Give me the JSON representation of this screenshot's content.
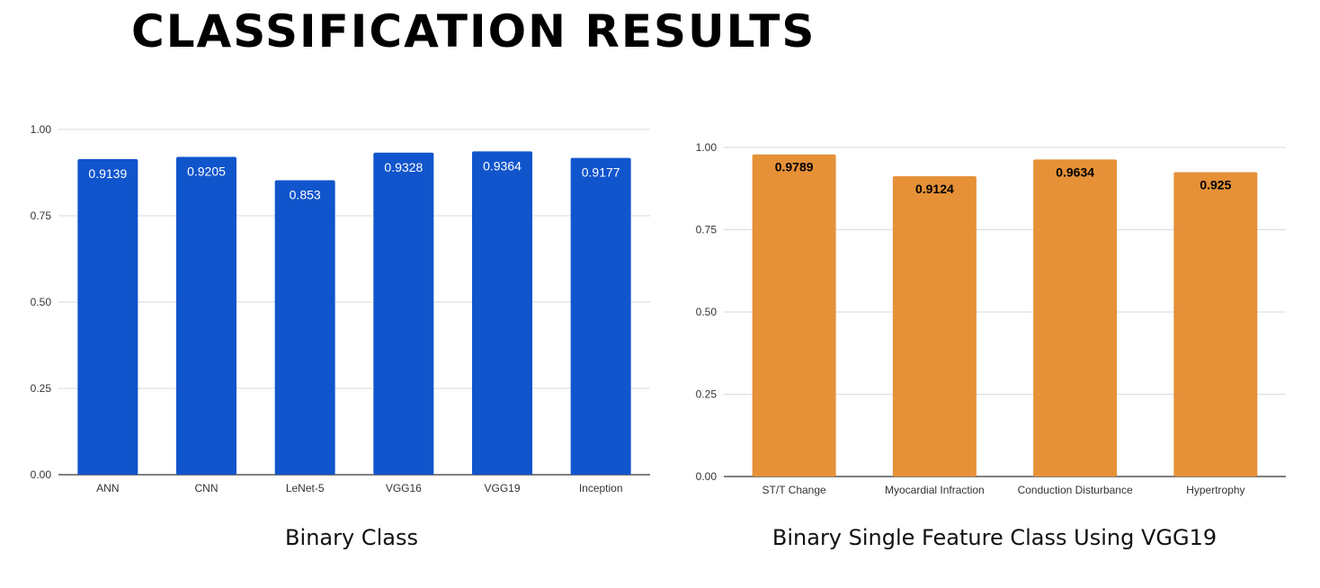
{
  "slide": {
    "title": "CLASSIFICATION RESULTS"
  },
  "chart_data": [
    {
      "type": "bar",
      "caption": "Binary Class",
      "categories": [
        "ANN",
        "CNN",
        "LeNet-5",
        "VGG16",
        "VGG19",
        "Inception"
      ],
      "values": [
        0.9139,
        0.9205,
        0.853,
        0.9328,
        0.9364,
        0.9177
      ],
      "value_labels": [
        "0.9139",
        "0.9205",
        "0.853",
        "0.9328",
        "0.9364",
        "0.9177"
      ],
      "yticks": [
        "0.00",
        "0.25",
        "0.50",
        "0.75",
        "1.00"
      ],
      "ylim": [
        0,
        1
      ],
      "grid": true,
      "bar_color": "#1155cc",
      "label_color": "#ffffff",
      "label_bold": false
    },
    {
      "type": "bar",
      "caption": "Binary Single Feature Class Using VGG19",
      "categories": [
        "ST/T Change",
        "Myocardial Infraction",
        "Conduction Disturbance",
        "Hypertrophy"
      ],
      "values": [
        0.9789,
        0.9124,
        0.9634,
        0.925
      ],
      "value_labels": [
        "0.9789",
        "0.9124",
        "0.9634",
        "0.925"
      ],
      "yticks": [
        "0.00",
        "0.25",
        "0.50",
        "0.75",
        "1.00"
      ],
      "ylim": [
        0,
        1
      ],
      "grid": true,
      "bar_color": "#e69138",
      "label_color": "#000000",
      "label_bold": true
    }
  ]
}
